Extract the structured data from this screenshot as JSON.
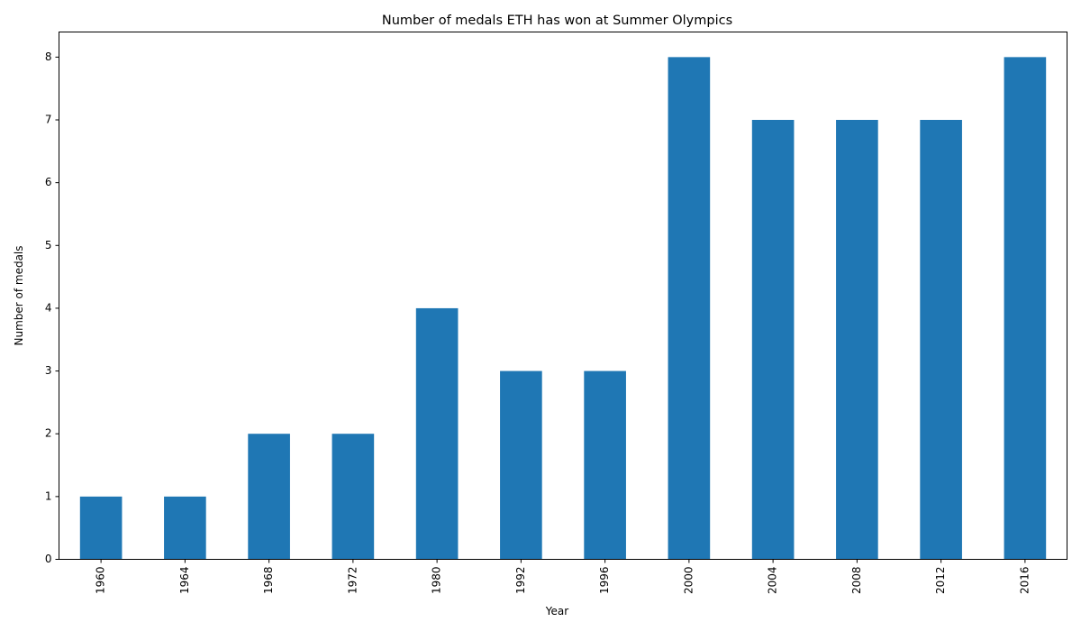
{
  "chart_data": {
    "type": "bar",
    "title": "Number of medals ETH has won at Summer Olympics",
    "xlabel": "Year",
    "ylabel": "Number of medals",
    "categories": [
      "1960",
      "1964",
      "1968",
      "1972",
      "1980",
      "1992",
      "1996",
      "2000",
      "2004",
      "2008",
      "2012",
      "2016"
    ],
    "values": [
      1,
      1,
      2,
      2,
      4,
      3,
      3,
      8,
      7,
      7,
      7,
      8
    ],
    "ylim": [
      0,
      8.4
    ],
    "yticks": [
      0,
      1,
      2,
      3,
      4,
      5,
      6,
      7,
      8
    ],
    "grid": false,
    "legend": "none",
    "bar_color": "#1f77b4"
  }
}
